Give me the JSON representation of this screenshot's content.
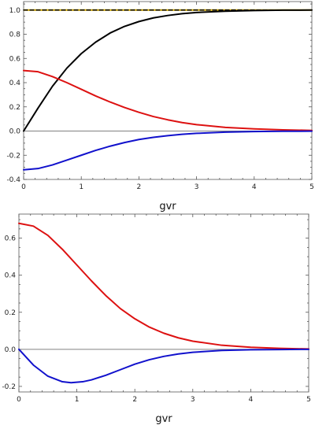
{
  "chart_data": [
    {
      "type": "line",
      "title": "",
      "xlabel": "gvr",
      "ylabel": "",
      "xlim": [
        0,
        5
      ],
      "ylim": [
        -0.4,
        1.07
      ],
      "grid": false,
      "xticks": [
        "0",
        "1",
        "2",
        "3",
        "4",
        "5"
      ],
      "xtick_values": [
        0,
        1,
        2,
        3,
        4,
        5
      ],
      "yticks": [
        "-0.4",
        "-0.2",
        "0.0",
        "0.2",
        "0.4",
        "0.6",
        "0.8",
        "1.0"
      ],
      "ytick_values": [
        -0.4,
        -0.2,
        0.0,
        0.2,
        0.4,
        0.6,
        0.8,
        1.0
      ],
      "reference_lines": [
        {
          "y": 0,
          "color": "#808080",
          "style": "solid"
        },
        {
          "y": 1,
          "color": "#f2c200",
          "style": "solid"
        }
      ],
      "series": [
        {
          "color": "#000000",
          "style": "solid",
          "x": [
            0,
            0.25,
            0.5,
            0.75,
            1,
            1.25,
            1.5,
            1.75,
            2,
            2.25,
            2.5,
            2.75,
            3,
            3.5,
            4,
            4.5,
            5
          ],
          "y": [
            0,
            0.19,
            0.37,
            0.52,
            0.64,
            0.735,
            0.81,
            0.865,
            0.905,
            0.935,
            0.955,
            0.97,
            0.98,
            0.99,
            0.996,
            0.999,
            1.0
          ]
        },
        {
          "color": "#000000",
          "style": "dashed",
          "x": [
            0,
            5
          ],
          "y": [
            1.0,
            1.0
          ]
        },
        {
          "color": "#dd1111",
          "style": "solid",
          "x": [
            0,
            0.25,
            0.5,
            0.75,
            1,
            1.25,
            1.5,
            1.75,
            2,
            2.25,
            2.5,
            2.75,
            3,
            3.5,
            4,
            4.5,
            5
          ],
          "y": [
            0.5,
            0.49,
            0.45,
            0.4,
            0.345,
            0.29,
            0.24,
            0.195,
            0.155,
            0.12,
            0.093,
            0.07,
            0.053,
            0.03,
            0.018,
            0.01,
            0.005
          ]
        },
        {
          "color": "#1111cc",
          "style": "solid",
          "x": [
            0,
            0.25,
            0.5,
            0.75,
            1,
            1.25,
            1.5,
            1.75,
            2,
            2.25,
            2.5,
            2.75,
            3,
            3.5,
            4,
            4.5,
            5
          ],
          "y": [
            -0.32,
            -0.31,
            -0.28,
            -0.24,
            -0.2,
            -0.16,
            -0.125,
            -0.095,
            -0.07,
            -0.052,
            -0.038,
            -0.027,
            -0.019,
            -0.009,
            -0.004,
            -0.002,
            -0.001
          ]
        }
      ]
    },
    {
      "type": "line",
      "title": "",
      "xlabel": "gvr",
      "ylabel": "",
      "xlim": [
        0,
        5
      ],
      "ylim": [
        -0.23,
        0.73
      ],
      "grid": false,
      "xticks": [
        "0",
        "1",
        "2",
        "3",
        "4",
        "5"
      ],
      "xtick_values": [
        0,
        1,
        2,
        3,
        4,
        5
      ],
      "yticks": [
        "-0.2",
        "0.0",
        "0.2",
        "0.4",
        "0.6"
      ],
      "ytick_values": [
        -0.2,
        0.0,
        0.2,
        0.4,
        0.6
      ],
      "reference_lines": [
        {
          "y": 0,
          "color": "#808080",
          "style": "solid"
        }
      ],
      "series": [
        {
          "color": "#dd1111",
          "style": "solid",
          "x": [
            0,
            0.25,
            0.5,
            0.75,
            1,
            1.25,
            1.5,
            1.75,
            2,
            2.25,
            2.5,
            2.75,
            3,
            3.5,
            4,
            4.5,
            5
          ],
          "y": [
            0.68,
            0.665,
            0.615,
            0.54,
            0.455,
            0.37,
            0.29,
            0.22,
            0.165,
            0.12,
            0.087,
            0.062,
            0.044,
            0.022,
            0.011,
            0.005,
            0.002
          ]
        },
        {
          "color": "#1111cc",
          "style": "solid",
          "x": [
            0,
            0.25,
            0.5,
            0.75,
            0.9,
            1.1,
            1.25,
            1.5,
            1.75,
            2,
            2.25,
            2.5,
            2.75,
            3,
            3.5,
            4,
            4.5,
            5
          ],
          "y": [
            0,
            -0.085,
            -0.145,
            -0.175,
            -0.18,
            -0.175,
            -0.165,
            -0.14,
            -0.11,
            -0.08,
            -0.056,
            -0.038,
            -0.025,
            -0.016,
            -0.006,
            -0.002,
            -0.001,
            0
          ]
        }
      ]
    }
  ]
}
